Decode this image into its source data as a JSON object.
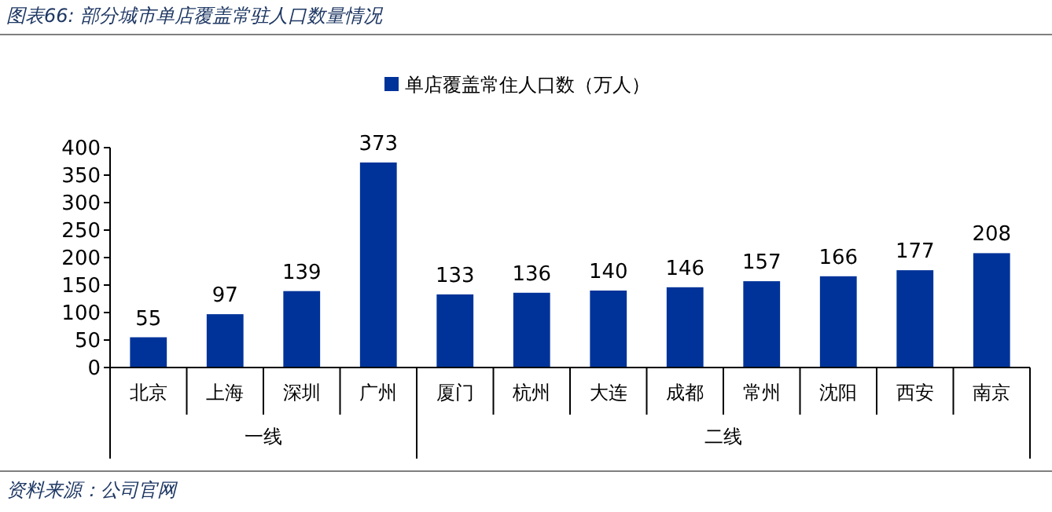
{
  "chart_data": {
    "type": "bar",
    "title": "图表66:  部分城市单店覆盖常驻人口数量情况",
    "categories": [
      "北京",
      "上海",
      "深圳",
      "广州",
      "厦门",
      "杭州",
      "大连",
      "成都",
      "常州",
      "沈阳",
      "西安",
      "南京"
    ],
    "series": [
      {
        "name": "单店覆盖常住人口数（万人）",
        "color": "#003399",
        "values": [
          55,
          97,
          139,
          373,
          133,
          136,
          140,
          146,
          157,
          166,
          177,
          208
        ]
      }
    ],
    "ylim": [
      0,
      400
    ],
    "yticks": [
      0,
      50,
      100,
      150,
      200,
      250,
      300,
      350,
      400
    ],
    "data_labels": true,
    "legend": "top",
    "grid": false,
    "annotations": [
      "一线",
      "二线",
      "资料来源：公司官网"
    ]
  }
}
